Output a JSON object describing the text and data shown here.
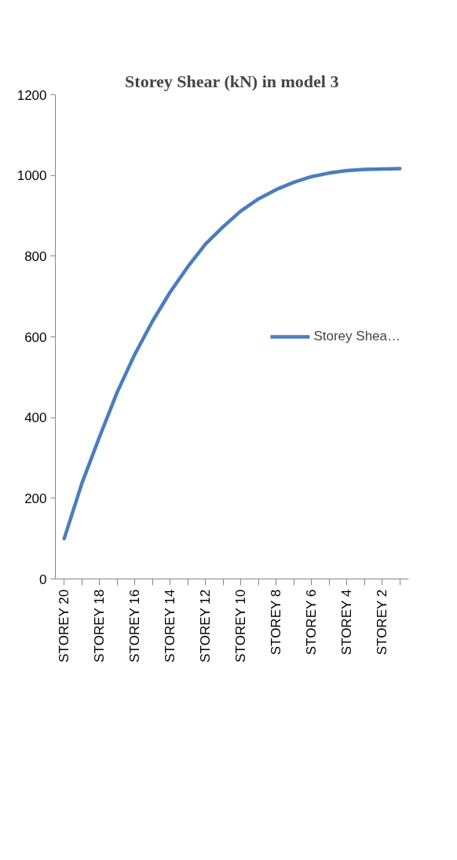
{
  "chart_data": {
    "type": "line",
    "title": "Storey Shear (kN) in model 3",
    "categories": [
      "STOREY 20",
      null,
      "STOREY 18",
      null,
      "STOREY 16",
      null,
      "STOREY 14",
      null,
      "STOREY 12",
      null,
      "STOREY 10",
      null,
      "STOREY 8",
      null,
      "STOREY 6",
      null,
      "STOREY 4",
      null,
      "STOREY 2",
      null
    ],
    "series": [
      {
        "name": "Storey Shea…",
        "color": "#4a7ebb",
        "values": [
          100,
          237,
          352,
          463,
          557,
          639,
          711,
          774,
          830,
          873,
          912,
          942,
          965,
          983,
          997,
          1006,
          1012,
          1015,
          1016,
          1017
        ]
      }
    ],
    "ylim": [
      0,
      1200
    ],
    "yticks": [
      0,
      200,
      400,
      600,
      800,
      1000,
      1200
    ],
    "grid": false,
    "legend": "right",
    "marker": "none",
    "line_style": "solid"
  }
}
